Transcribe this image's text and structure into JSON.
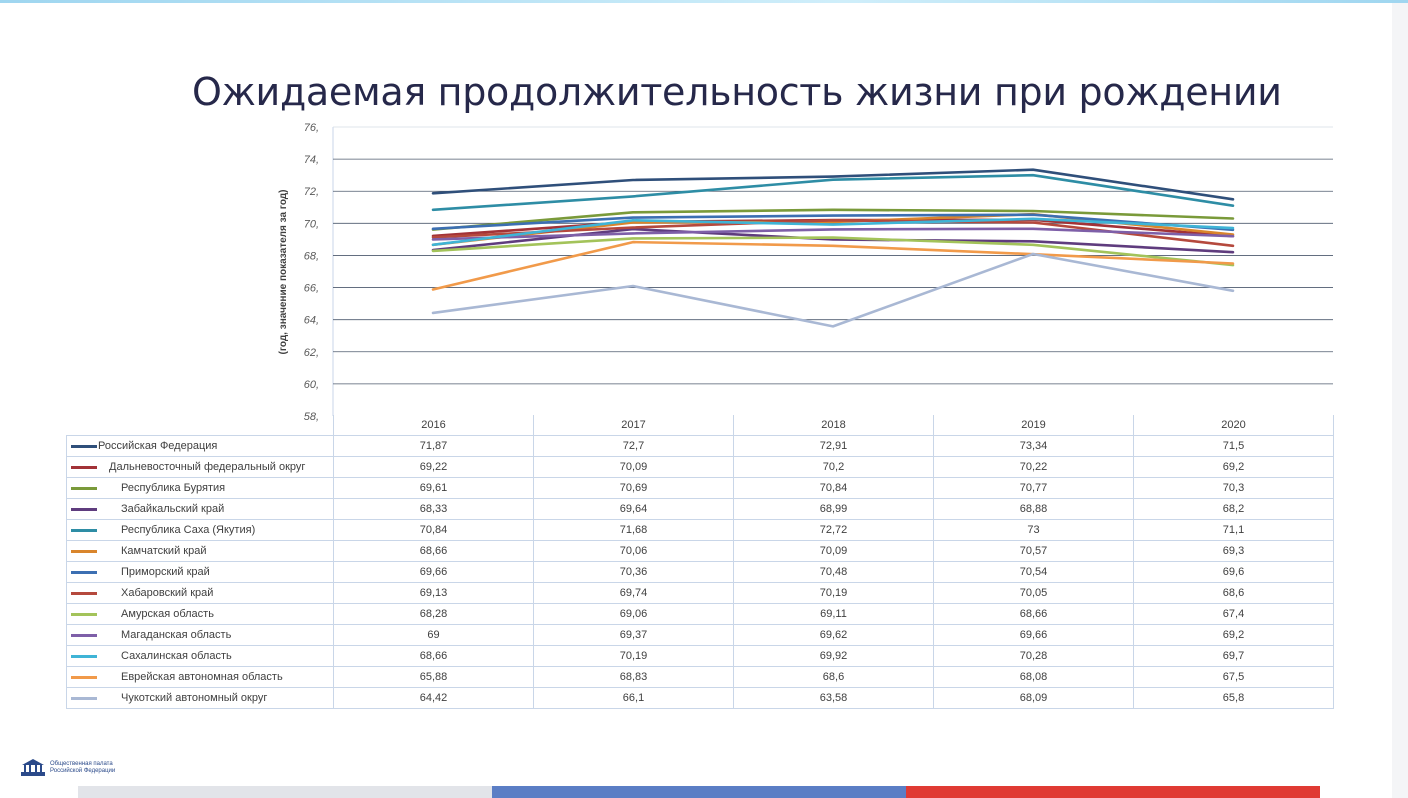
{
  "title": "Ожидаемая продолжительность жизни при рождении",
  "footer": {
    "logo_text_line1": "Общественная палата",
    "logo_text_line2": "Российской Федерации"
  },
  "colors": {
    "title": "#26284a",
    "gridline": "#4d5a6e",
    "table_border": "#c9d6e8",
    "footer_segments": [
      "#e2e4e9",
      "#5b7ec5",
      "#e03a33"
    ]
  },
  "chart_data": {
    "type": "line",
    "title": "",
    "xlabel": "",
    "ylabel": "(год, значение показателя за год)",
    "x": [
      "2016",
      "2017",
      "2018",
      "2019",
      "2020"
    ],
    "ylim": [
      58,
      76
    ],
    "yticks": [
      "58,",
      "60,",
      "62,",
      "64,",
      "66,",
      "68,",
      "70,",
      "72,",
      "74,",
      "76,"
    ],
    "grid": true,
    "legend": "data-table-below",
    "series": [
      {
        "name": "Российская Федерация",
        "color": "#2f4f7a",
        "values": [
          71.87,
          72.7,
          72.91,
          73.34,
          71.5
        ],
        "labels": [
          "71,87",
          "72,7",
          "72,91",
          "73,34",
          "71,5"
        ]
      },
      {
        "name": "Дальневосточный федеральный округ",
        "color": "#a23237",
        "values": [
          69.22,
          70.09,
          70.2,
          70.22,
          69.2
        ],
        "labels": [
          "69,22",
          "70,09",
          "70,2",
          "70,22",
          "69,2"
        ]
      },
      {
        "name": "Республика Бурятия",
        "color": "#7a9a3a",
        "values": [
          69.61,
          70.69,
          70.84,
          70.77,
          70.3
        ],
        "labels": [
          "69,61",
          "70,69",
          "70,84",
          "70,77",
          "70,3"
        ]
      },
      {
        "name": "Забайкальский край",
        "color": "#5f3c7e",
        "values": [
          68.33,
          69.64,
          68.99,
          68.88,
          68.2
        ],
        "labels": [
          "68,33",
          "69,64",
          "68,99",
          "68,88",
          "68,2"
        ]
      },
      {
        "name": "Республика Саха (Якутия)",
        "color": "#2e8da5",
        "values": [
          70.84,
          71.68,
          72.72,
          73,
          71.1
        ],
        "labels": [
          "70,84",
          "71,68",
          "72,72",
          "73",
          "71,1"
        ]
      },
      {
        "name": "Камчатский край",
        "color": "#d9852c",
        "values": [
          68.66,
          70.06,
          70.09,
          70.57,
          69.3
        ],
        "labels": [
          "68,66",
          "70,06",
          "70,09",
          "70,57",
          "69,3"
        ]
      },
      {
        "name": "Приморский край",
        "color": "#3c6fb2",
        "values": [
          69.66,
          70.36,
          70.48,
          70.54,
          69.6
        ],
        "labels": [
          "69,66",
          "70,36",
          "70,48",
          "70,54",
          "69,6"
        ]
      },
      {
        "name": "Хабаровский край",
        "color": "#b5493d",
        "values": [
          69.13,
          69.74,
          70.19,
          70.05,
          68.6
        ],
        "labels": [
          "69,13",
          "69,74",
          "70,19",
          "70,05",
          "68,6"
        ]
      },
      {
        "name": "Амурская область",
        "color": "#a3c35a",
        "values": [
          68.28,
          69.06,
          69.11,
          68.66,
          67.4
        ],
        "labels": [
          "68,28",
          "69,06",
          "69,11",
          "68,66",
          "67,4"
        ]
      },
      {
        "name": "Магаданская область",
        "color": "#7e5fa8",
        "values": [
          69,
          69.37,
          69.62,
          69.66,
          69.2
        ],
        "labels": [
          "69",
          "69,37",
          "69,62",
          "69,66",
          "69,2"
        ]
      },
      {
        "name": "Сахалинская область",
        "color": "#3fb4d6",
        "values": [
          68.66,
          70.19,
          69.92,
          70.28,
          69.7
        ],
        "labels": [
          "68,66",
          "70,19",
          "69,92",
          "70,28",
          "69,7"
        ]
      },
      {
        "name": "Еврейская автономная область",
        "color": "#f19a4a",
        "values": [
          65.88,
          68.83,
          68.6,
          68.08,
          67.5
        ],
        "labels": [
          "65,88",
          "68,83",
          "68,6",
          "68,08",
          "67,5"
        ]
      },
      {
        "name": "Чукотский автономный округ",
        "color": "#a9b8d4",
        "values": [
          64.42,
          66.1,
          63.58,
          68.09,
          65.8
        ],
        "labels": [
          "64,42",
          "66,1",
          "63,58",
          "68,09",
          "65,8"
        ]
      }
    ]
  }
}
